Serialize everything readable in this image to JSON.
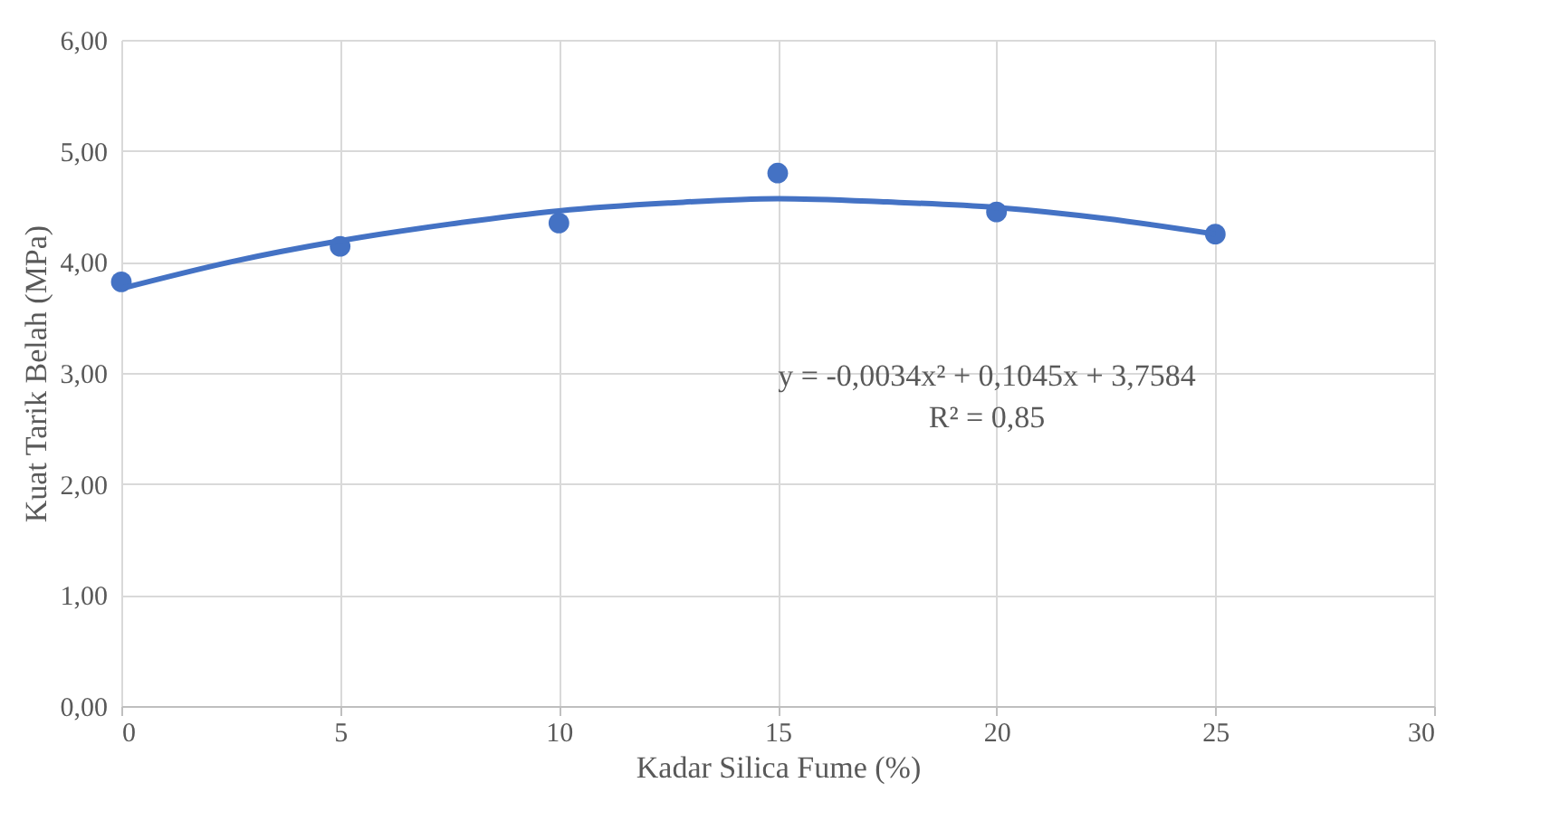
{
  "chart_data": {
    "type": "scatter",
    "xlabel": "Kadar Silica Fume (%)",
    "ylabel": "Kuat Tarik Belah (MPa)",
    "series": [
      {
        "color": "#4472c4",
        "marker": "circle",
        "x": [
          0,
          5,
          10,
          15,
          20,
          25
        ],
        "values": [
          3.82,
          4.14,
          4.35,
          4.8,
          4.45,
          4.25
        ]
      },
      {
        "type": "line",
        "color": "#4472c4",
        "marker": "none",
        "x": [
          0,
          2.5,
          5,
          7.5,
          10,
          12.5,
          15,
          17.5,
          20,
          22.5,
          25
        ],
        "values": [
          3.76,
          4.0,
          4.19,
          4.34,
          4.46,
          4.53,
          4.57,
          4.54,
          4.49,
          4.39,
          4.25
        ]
      }
    ],
    "xlim": [
      0,
      30
    ],
    "xticks": [
      0,
      5,
      10,
      15,
      20,
      25,
      30
    ],
    "ylim": [
      0,
      6
    ],
    "yticks": [
      {
        "value": 0,
        "label": "0,00"
      },
      {
        "value": 1,
        "label": "1,00"
      },
      {
        "value": 2,
        "label": "2,00"
      },
      {
        "value": 3,
        "label": "3,00"
      },
      {
        "value": 4,
        "label": "4,00"
      },
      {
        "value": 5,
        "label": "5,00"
      },
      {
        "value": 6,
        "label": "6,00"
      }
    ],
    "grid": true,
    "annotations": [
      "y = -0,0034x² + 0,1045x + 3,7584",
      "R² = 0,85"
    ]
  }
}
